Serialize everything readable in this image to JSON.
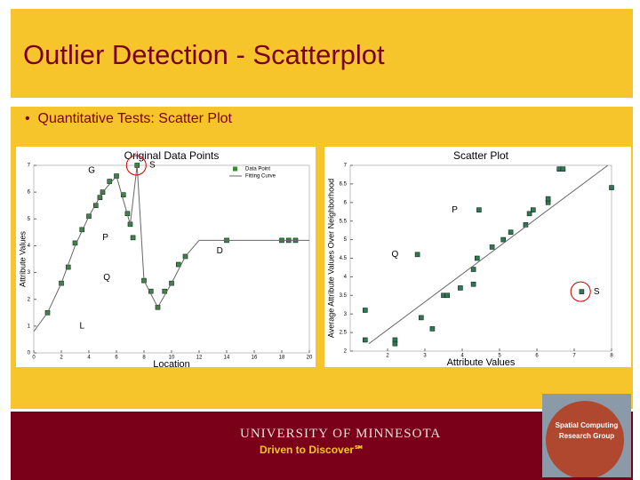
{
  "title": "Outlier Detection - Scatterplot",
  "bullet": "Quantitative Tests: Scatter Plot",
  "footer": {
    "university": "UNIVERSITY OF MINNESOTA",
    "motto": "Driven to Discover℠",
    "logo": [
      "Spatial Computing",
      "Research Group"
    ]
  },
  "chart_data": [
    {
      "type": "scatter",
      "title": "Original Data Points",
      "x_label": "Location",
      "y_label": "Attribute Values",
      "xlim": [
        0,
        20
      ],
      "xticks": [
        0,
        2,
        4,
        6,
        8,
        10,
        12,
        14,
        16,
        18,
        20
      ],
      "ylim": [
        0,
        7
      ],
      "yticks": [
        0,
        1,
        2,
        3,
        4,
        5,
        6,
        7
      ],
      "legend": "upper right",
      "series": [
        {
          "name": "Data Point",
          "color": "#3a8a3a",
          "x": [
            1,
            2,
            2.5,
            3,
            3.5,
            4,
            4.5,
            4.8,
            5,
            5.5,
            6,
            6.5,
            6.8,
            7,
            7.2,
            7.5,
            8,
            8.5,
            9,
            9.5,
            10,
            10.5,
            11,
            14,
            18,
            18.5,
            19
          ],
          "values": [
            1.5,
            2.6,
            3.2,
            4.1,
            4.6,
            5.1,
            5.5,
            5.8,
            6.0,
            6.4,
            6.6,
            5.9,
            5.2,
            4.8,
            4.3,
            7.0,
            2.7,
            2.3,
            1.7,
            2.3,
            2.6,
            3.3,
            3.6,
            4.2,
            4.2,
            4.2,
            4.2
          ]
        },
        {
          "name": "Fitting Curve",
          "type": "line",
          "color": "#666666",
          "x": [
            0,
            1,
            2,
            3,
            4,
            5,
            6,
            7,
            7.5,
            8,
            9,
            10,
            11,
            12,
            14,
            16,
            18,
            20
          ],
          "values": [
            0.8,
            1.5,
            2.6,
            4.0,
            5.1,
            6.0,
            6.6,
            4.8,
            7.0,
            2.7,
            1.7,
            2.6,
            3.6,
            4.2,
            4.2,
            4.2,
            4.2,
            4.2
          ]
        }
      ],
      "annotations": [
        {
          "text": "G",
          "x": 4.2,
          "y": 6.8
        },
        {
          "text": "S",
          "x": 8.6,
          "y": 7.0,
          "circle": true
        },
        {
          "text": "P",
          "x": 5.2,
          "y": 4.3
        },
        {
          "text": "Q",
          "x": 5.3,
          "y": 2.8
        },
        {
          "text": "D",
          "x": 13.5,
          "y": 3.8
        },
        {
          "text": "L",
          "x": 3.5,
          "y": 1.0
        }
      ]
    },
    {
      "type": "scatter",
      "title": "Scatter Plot",
      "x_label": "Attribute Values",
      "y_label": "Average Attribute Values Over Neighborhood",
      "xlim": [
        1,
        8
      ],
      "xticks": [
        2,
        3,
        4,
        5,
        6,
        7,
        8
      ],
      "ylim": [
        2,
        7
      ],
      "yticks": [
        2,
        2.5,
        3,
        3.5,
        4,
        4.5,
        5,
        5.5,
        6,
        6.5,
        7
      ],
      "series": [
        {
          "color": "#2f7a4a",
          "x": [
            1.4,
            1.4,
            2.2,
            2.2,
            2.9,
            3.2,
            3.5,
            3.6,
            3.95,
            4.3,
            4.3,
            4.4,
            4.8,
            5.1,
            5.3,
            5.7,
            5.8,
            5.9,
            6.3,
            6.3,
            6.6,
            6.7,
            8,
            4.45,
            2.8,
            7.2
          ],
          "values": [
            3.1,
            2.3,
            2.3,
            2.2,
            2.9,
            2.6,
            3.5,
            3.5,
            3.7,
            4.2,
            3.8,
            4.5,
            4.8,
            5.0,
            5.2,
            5.4,
            5.7,
            5.8,
            6.0,
            6.1,
            6.9,
            6.9,
            6.4,
            5.8,
            4.6,
            3.6
          ]
        },
        {
          "type": "line",
          "color": "#666666",
          "x": [
            1.5,
            7.9
          ],
          "values": [
            2.2,
            7.0
          ]
        }
      ],
      "annotations": [
        {
          "text": "P",
          "x": 3.8,
          "y": 5.8
        },
        {
          "text": "Q",
          "x": 2.2,
          "y": 4.6
        },
        {
          "text": "S",
          "x": 7.6,
          "y": 3.6,
          "circle": true
        }
      ]
    }
  ]
}
